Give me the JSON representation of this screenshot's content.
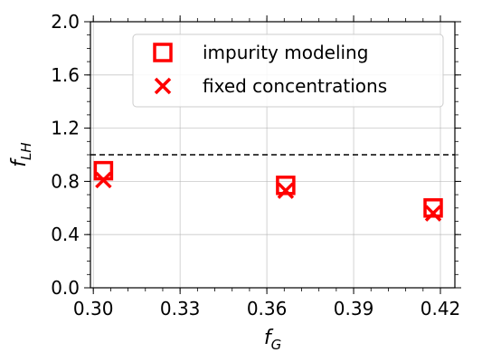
{
  "chart_data": {
    "type": "scatter",
    "xlabel": {
      "base": "f",
      "sub": "G"
    },
    "ylabel": {
      "base": "f",
      "sub": "LH"
    },
    "xlim": [
      0.299,
      0.425
    ],
    "ylim": [
      0.0,
      2.0
    ],
    "x_ticks": [
      0.3,
      0.33,
      0.36,
      0.39,
      0.42
    ],
    "x_tick_labels": [
      "0.30",
      "0.33",
      "0.36",
      "0.39",
      "0.42"
    ],
    "y_ticks": [
      0.0,
      0.4,
      0.8,
      1.2,
      1.6,
      2.0
    ],
    "y_tick_labels": [
      "0.0",
      "0.4",
      "0.8",
      "1.2",
      "1.6",
      "2.0"
    ],
    "grid": true,
    "reference_line": {
      "y": 1.0,
      "style": "dashed",
      "color": "#000000"
    },
    "legend_position": "top-right",
    "series": [
      {
        "name": "impurity modeling",
        "marker": "square-open",
        "color": "#ff0000",
        "points": [
          {
            "x": 0.3035,
            "y": 0.88
          },
          {
            "x": 0.3665,
            "y": 0.77
          },
          {
            "x": 0.4175,
            "y": 0.6
          }
        ]
      },
      {
        "name": "fixed concentrations",
        "marker": "x",
        "color": "#ff0000",
        "points": [
          {
            "x": 0.3035,
            "y": 0.81
          },
          {
            "x": 0.3665,
            "y": 0.73
          },
          {
            "x": 0.4175,
            "y": 0.56
          }
        ]
      }
    ]
  }
}
